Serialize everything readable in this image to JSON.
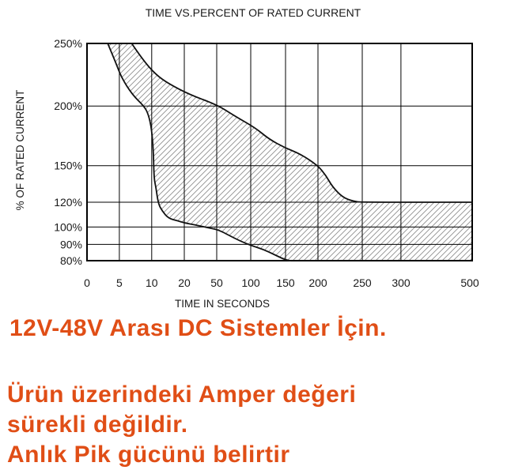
{
  "chart_data": {
    "type": "area",
    "title": "TIME VS.PERCENT OF RATED CURRENT",
    "xlabel": "TIME IN SECONDS",
    "ylabel": "% OF RATED CURRENT",
    "grid": true,
    "ylim": [
      80,
      250
    ],
    "x_ticks": [
      0,
      5,
      10,
      20,
      50,
      100,
      150,
      200,
      250,
      300,
      500
    ],
    "x_tick_labels": [
      "0",
      "5",
      "10",
      "20",
      "50",
      "100",
      "150",
      "200",
      "250",
      "300",
      "500"
    ],
    "y_ticks": [
      250,
      200,
      150,
      120,
      100,
      90,
      80
    ],
    "y_tick_labels": [
      "250%",
      "200%",
      "150%",
      "120%",
      "100%",
      "90%",
      "80%"
    ],
    "band": {
      "fill": "hatched",
      "hatch_color": "#8f8f8f",
      "line_color": "#111111",
      "lower_curve": [
        [
          3.2,
          250
        ],
        [
          4.5,
          234
        ],
        [
          5.3,
          223
        ],
        [
          7.0,
          209
        ],
        [
          8.8,
          200
        ],
        [
          9.5,
          193
        ],
        [
          10.0,
          180
        ],
        [
          10.5,
          163
        ],
        [
          10.7,
          140
        ],
        [
          11.3,
          132
        ],
        [
          12.0,
          119
        ],
        [
          13.2,
          113
        ],
        [
          15.1,
          107
        ],
        [
          18.0,
          105
        ],
        [
          20.2,
          103.3
        ],
        [
          30.2,
          101.7
        ],
        [
          41.9,
          99.6
        ],
        [
          52.3,
          98.4
        ],
        [
          68.6,
          95.1
        ],
        [
          83.7,
          92.1
        ],
        [
          101.1,
          89.2
        ],
        [
          118.2,
          86.9
        ],
        [
          134.1,
          83.7
        ],
        [
          148.8,
          80.7
        ],
        [
          157.3,
          80
        ]
      ],
      "upper_curve": [
        [
          6.9,
          250
        ],
        [
          8.6,
          237
        ],
        [
          11.3,
          225
        ],
        [
          15.1,
          218
        ],
        [
          25.1,
          209
        ],
        [
          51.1,
          200.8
        ],
        [
          76.7,
          191.5
        ],
        [
          106.9,
          181.6
        ],
        [
          126.2,
          172.3
        ],
        [
          148.8,
          165
        ],
        [
          173.2,
          159.7
        ],
        [
          200,
          150
        ],
        [
          208.9,
          142
        ],
        [
          216,
          133
        ],
        [
          227.7,
          124
        ],
        [
          240.2,
          120.7
        ],
        [
          250,
          120
        ],
        [
          500,
          120
        ]
      ]
    }
  },
  "caption": {
    "color": "#e04e16",
    "heading": "12V-48V Arası DC Sistemler İçin.",
    "lines": [
      "Ürün üzerindeki Amper değeri",
      "sürekli değildir.",
      "Anlık Pik gücünü belirtir"
    ]
  }
}
